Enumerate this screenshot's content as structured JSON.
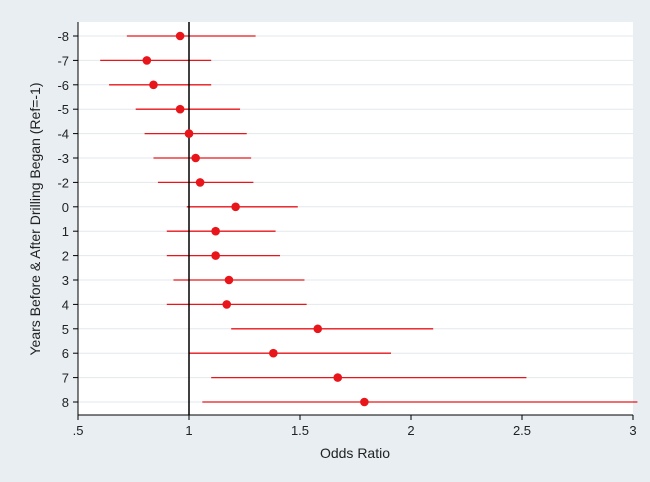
{
  "chart_data": {
    "type": "scatter",
    "subtype": "forest-plot",
    "title": "",
    "xlabel": "Odds Ratio",
    "ylabel": "Years Before & After Drilling Began (Ref=-1)",
    "xlim": [
      0.5,
      3.0
    ],
    "xticks": [
      0.5,
      1,
      1.5,
      2,
      2.5,
      3
    ],
    "xtick_labels": [
      ".5",
      "1",
      "1.5",
      "2",
      "2.5",
      "3"
    ],
    "reference_line": 1,
    "grid": "horizontal",
    "categories": [
      "-8",
      "-7",
      "-6",
      "-5",
      "-4",
      "-3",
      "-2",
      "0",
      "1",
      "2",
      "3",
      "4",
      "5",
      "6",
      "7",
      "8"
    ],
    "estimates": [
      0.96,
      0.81,
      0.84,
      0.96,
      1.0,
      1.03,
      1.05,
      1.21,
      1.12,
      1.12,
      1.18,
      1.17,
      1.58,
      1.38,
      1.67,
      1.79
    ],
    "lower": [
      0.72,
      0.6,
      0.64,
      0.76,
      0.8,
      0.84,
      0.86,
      0.99,
      0.9,
      0.9,
      0.93,
      0.9,
      1.19,
      1.0,
      1.1,
      1.06
    ],
    "upper": [
      1.3,
      1.1,
      1.1,
      1.23,
      1.26,
      1.28,
      1.29,
      1.49,
      1.39,
      1.41,
      1.52,
      1.53,
      2.1,
      1.91,
      2.52,
      3.02
    ],
    "colors": {
      "marker": "#e8161b",
      "ci_line": "#e8161b",
      "ref_line": "#000000",
      "grid": "#e3e8ec",
      "background": "#e8eef2",
      "plot_bg": "#ffffff"
    }
  }
}
